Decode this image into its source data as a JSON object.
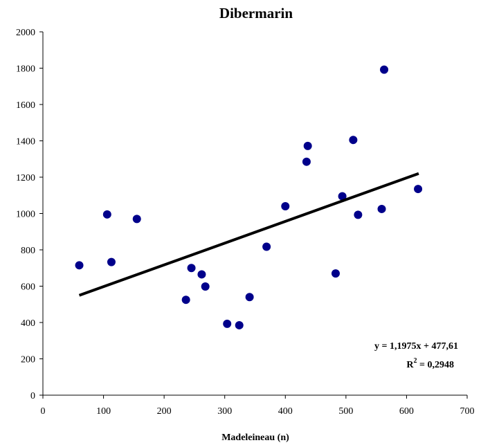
{
  "chart_data": {
    "type": "scatter",
    "title": "Dibermarin",
    "xlabel": "Madeleineau (n)",
    "ylabel": "",
    "xlim": [
      0,
      700
    ],
    "ylim": [
      0,
      2000
    ],
    "x_ticks": [
      0,
      100,
      200,
      300,
      400,
      500,
      600,
      700
    ],
    "y_ticks": [
      0,
      200,
      400,
      600,
      800,
      1000,
      1200,
      1400,
      1600,
      1800,
      2000
    ],
    "grid": false,
    "legend": "none",
    "marker_color": "#00008B",
    "trendline_color": "#000000",
    "series": [
      {
        "points": [
          [
            60,
            715
          ],
          [
            106,
            995
          ],
          [
            113,
            733
          ],
          [
            155,
            970
          ],
          [
            236,
            525
          ],
          [
            245,
            700
          ],
          [
            262,
            665
          ],
          [
            268,
            598
          ],
          [
            304,
            393
          ],
          [
            324,
            385
          ],
          [
            341,
            540
          ],
          [
            369,
            817
          ],
          [
            400,
            1040
          ],
          [
            435,
            1285
          ],
          [
            437,
            1372
          ],
          [
            483,
            670
          ],
          [
            494,
            1095
          ],
          [
            512,
            1405
          ],
          [
            520,
            993
          ],
          [
            559,
            1025
          ],
          [
            563,
            1792
          ],
          [
            619,
            1135
          ]
        ]
      }
    ],
    "trendline": {
      "type": "linear",
      "slope": 1.1975,
      "intercept": 477.61,
      "x_range": [
        60,
        620
      ],
      "equation_label": "y = 1,1975x + 477,61",
      "r2_prefix": "R",
      "r2_sup": "2",
      "r2_value": " = 0,2948"
    }
  }
}
